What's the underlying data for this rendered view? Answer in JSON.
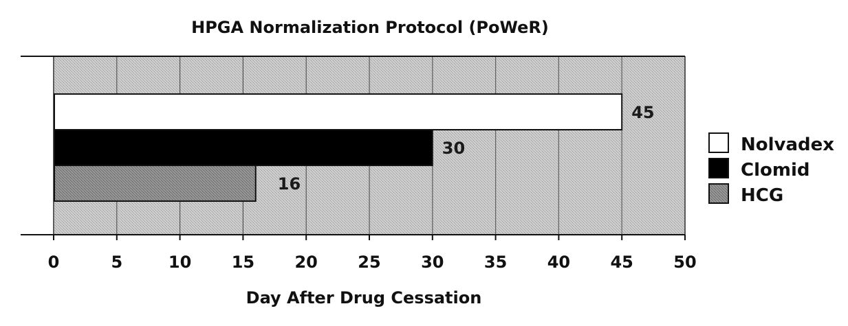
{
  "chart_data": {
    "type": "bar",
    "orientation": "horizontal",
    "title": "HPGA Normalization Protocol (PoWeR)",
    "xlabel": "Day After Drug Cessation",
    "ylabel": "",
    "xlim": [
      0,
      50
    ],
    "xticks": [
      0,
      5,
      10,
      15,
      20,
      25,
      30,
      35,
      40,
      45,
      50
    ],
    "grid": true,
    "legend_position": "right",
    "series": [
      {
        "name": "Nolvadex",
        "value": 45,
        "label": "45",
        "color": "#ffffff",
        "pattern": "none"
      },
      {
        "name": "Clomid",
        "value": 30,
        "label": "30",
        "color": "#000000",
        "pattern": "none"
      },
      {
        "name": "HCG",
        "value": 16,
        "label": "16",
        "color": "#8a8a8a",
        "pattern": "stipple"
      }
    ],
    "plot_background": "#c4c4c4"
  }
}
